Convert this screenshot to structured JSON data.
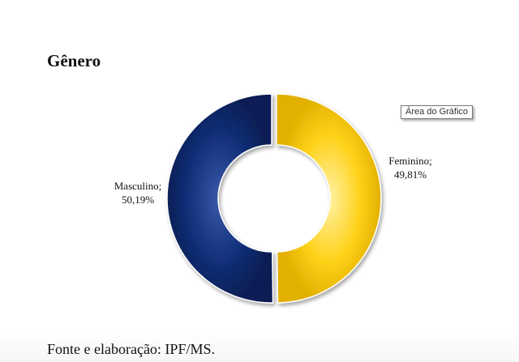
{
  "chart_data": {
    "type": "pie",
    "title": "Gênero",
    "slices": [
      {
        "name": "Feminino",
        "value": 49.81,
        "label": "Feminino;",
        "value_label": "49,81%",
        "color": "#f8c600"
      },
      {
        "name": "Masculino",
        "value": 50.19,
        "label": "Masculino;",
        "value_label": "50,19%",
        "color": "#0d2a73"
      }
    ]
  },
  "tooltip": {
    "text": "Área do Gráfico"
  },
  "source": {
    "text": "Fonte e elaboração: IPF/MS."
  }
}
